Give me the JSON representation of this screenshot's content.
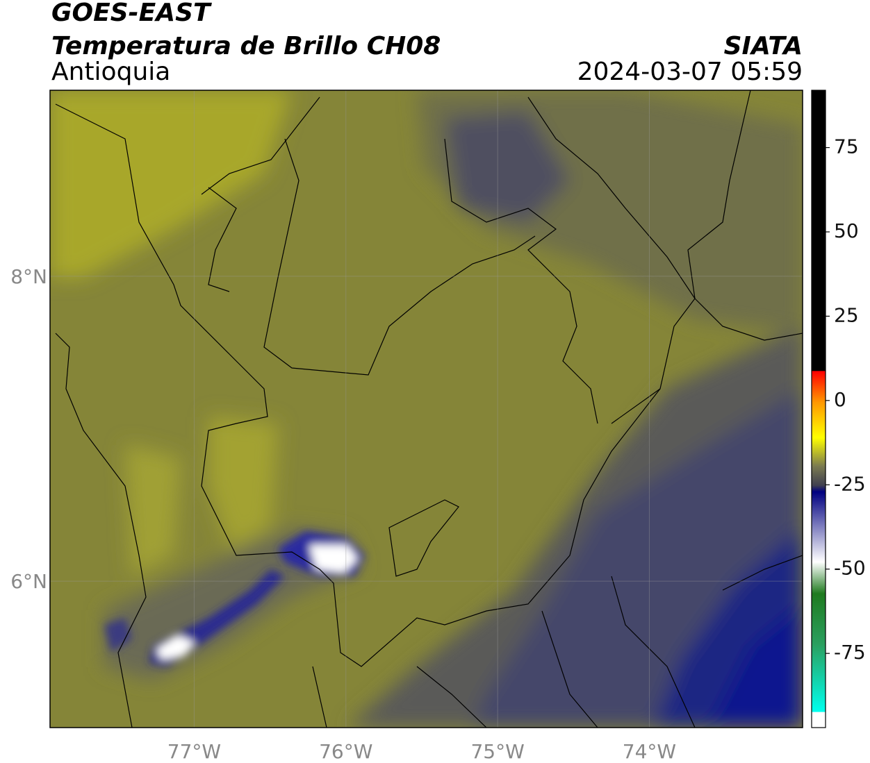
{
  "header": {
    "title": "GOES-EAST",
    "subtitle": "Temperatura de Brillo CH08",
    "region": "Antioquia",
    "source": "SIATA",
    "datetime": "2024-03-07 05:59"
  },
  "map": {
    "xlim": [
      -77.95,
      -72.99
    ],
    "ylim": [
      5.04,
      9.22
    ],
    "xticks": [
      {
        "value": -77,
        "label": "77°W"
      },
      {
        "value": -76,
        "label": "76°W"
      },
      {
        "value": -75,
        "label": "75°W"
      },
      {
        "value": -74,
        "label": "74°W"
      }
    ],
    "yticks": [
      {
        "value": 8,
        "label": "8°N"
      },
      {
        "value": 6,
        "label": "6°N"
      }
    ]
  },
  "colorbar": {
    "lim": [
      -97,
      92
    ],
    "ticks": [
      75,
      50,
      25,
      0,
      -25,
      -50,
      -75
    ]
  }
}
